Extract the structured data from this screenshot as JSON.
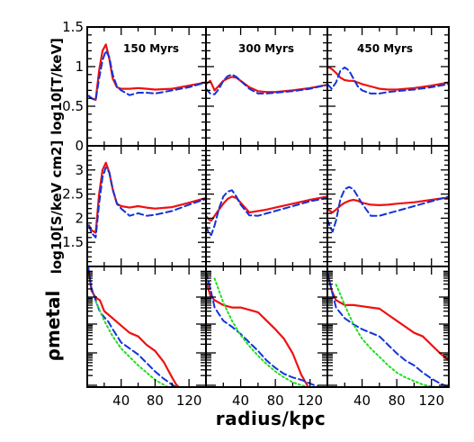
{
  "chart_data": {
    "type": "line",
    "layout": "3 rows x 3 columns, shared axes",
    "xlabel": "radius/kpc",
    "xlim": [
      0,
      140
    ],
    "xticks": [
      40,
      80,
      120
    ],
    "columns": [
      "150 Myrs",
      "300 Myrs",
      "450 Myrs"
    ],
    "rows": [
      {
        "ylabel": "log10[T/keV]",
        "ylim": [
          0,
          1.5
        ],
        "yticks": [
          0,
          0.5,
          1,
          1.5
        ],
        "ytick_labels": [
          "0",
          "0.5",
          "1",
          "1.5"
        ]
      },
      {
        "ylabel": "log10[S/keV cm2]",
        "ylim": [
          1.0,
          3.5
        ],
        "yticks": [
          1.5,
          2,
          2.5,
          3
        ],
        "ytick_labels": [
          "1.5",
          "2",
          "2.5",
          "3"
        ]
      },
      {
        "ylabel": "ρmetal",
        "ylim": [
          0,
          1
        ],
        "yticks": [],
        "ytick_labels": []
      }
    ],
    "series_styles": [
      {
        "color": "#ee1111",
        "dash": "solid"
      },
      {
        "color": "#1133dd",
        "dash": "dashed"
      },
      {
        "color": "#22dd22",
        "dash": "dotted"
      }
    ],
    "panels": [
      [
        [
          {
            "x": [
              2,
              5,
              10,
              14,
              18,
              22,
              26,
              30,
              35,
              40,
              50,
              60,
              70,
              80,
              100,
              120,
              140
            ],
            "y": [
              0.63,
              0.6,
              0.58,
              0.95,
              1.2,
              1.28,
              1.1,
              0.85,
              0.74,
              0.72,
              0.72,
              0.73,
              0.72,
              0.71,
              0.72,
              0.76,
              0.8
            ]
          },
          {
            "x": [
              2,
              5,
              10,
              14,
              18,
              22,
              26,
              30,
              35,
              40,
              50,
              60,
              70,
              80,
              100,
              120,
              140
            ],
            "y": [
              0.63,
              0.6,
              0.58,
              0.85,
              1.08,
              1.2,
              1.12,
              0.9,
              0.75,
              0.7,
              0.64,
              0.67,
              0.67,
              0.66,
              0.7,
              0.74,
              0.8
            ]
          }
        ],
        [
          {
            "x": [
              2,
              5,
              10,
              14,
              18,
              22,
              26,
              30,
              35,
              40,
              50,
              60,
              70,
              80,
              100,
              120,
              140
            ],
            "y": [
              1.85,
              1.75,
              1.7,
              2.5,
              3.0,
              3.15,
              2.95,
              2.6,
              2.3,
              2.25,
              2.22,
              2.25,
              2.22,
              2.2,
              2.23,
              2.32,
              2.42
            ]
          },
          {
            "x": [
              2,
              5,
              10,
              14,
              18,
              22,
              26,
              30,
              35,
              40,
              50,
              60,
              70,
              80,
              100,
              120,
              140
            ],
            "y": [
              1.85,
              1.7,
              1.6,
              2.3,
              2.85,
              3.05,
              2.95,
              2.6,
              2.3,
              2.2,
              2.05,
              2.1,
              2.05,
              2.07,
              2.15,
              2.28,
              2.4
            ]
          }
        ],
        [
          {
            "x": [
              1,
              5,
              10,
              15,
              20,
              25,
              30,
              40,
              50,
              60,
              70,
              80,
              90,
              100,
              105,
              108
            ],
            "y": [
              1.0,
              0.8,
              0.74,
              0.72,
              0.63,
              0.6,
              0.57,
              0.51,
              0.45,
              0.42,
              0.35,
              0.3,
              0.21,
              0.08,
              0.02,
              0.0
            ]
          },
          {
            "x": [
              1,
              5,
              10,
              15,
              20,
              25,
              30,
              40,
              50,
              60,
              70,
              80,
              90,
              100,
              105
            ],
            "y": [
              1.0,
              0.82,
              0.72,
              0.62,
              0.58,
              0.54,
              0.48,
              0.37,
              0.32,
              0.27,
              0.2,
              0.13,
              0.07,
              0.02,
              0.0
            ]
          },
          {
            "x": [
              10,
              20,
              30,
              40,
              50,
              60,
              70,
              80,
              90,
              95
            ],
            "y": [
              0.71,
              0.55,
              0.42,
              0.32,
              0.25,
              0.18,
              0.12,
              0.06,
              0.02,
              0.0
            ]
          }
        ]
      ],
      [
        [
          {
            "x": [
              0,
              5,
              10,
              15,
              20,
              25,
              30,
              35,
              40,
              50,
              60,
              70,
              80,
              100,
              120,
              140
            ],
            "y": [
              0.78,
              0.82,
              0.7,
              0.76,
              0.82,
              0.85,
              0.87,
              0.86,
              0.82,
              0.74,
              0.69,
              0.68,
              0.68,
              0.7,
              0.73,
              0.77
            ]
          },
          {
            "x": [
              0,
              5,
              10,
              15,
              20,
              25,
              30,
              35,
              40,
              50,
              60,
              70,
              80,
              100,
              120,
              140
            ],
            "y": [
              0.72,
              0.66,
              0.65,
              0.72,
              0.82,
              0.88,
              0.9,
              0.87,
              0.82,
              0.72,
              0.66,
              0.66,
              0.67,
              0.69,
              0.72,
              0.77
            ]
          }
        ],
        [
          {
            "x": [
              0,
              3,
              6,
              10,
              15,
              20,
              25,
              30,
              35,
              40,
              50,
              60,
              70,
              80,
              100,
              120,
              140
            ],
            "y": [
              2.05,
              1.98,
              1.95,
              2.05,
              2.18,
              2.3,
              2.4,
              2.45,
              2.42,
              2.32,
              2.12,
              2.15,
              2.18,
              2.22,
              2.3,
              2.38,
              2.45
            ]
          },
          {
            "x": [
              0,
              3,
              6,
              10,
              15,
              20,
              25,
              30,
              35,
              40,
              50,
              60,
              70,
              80,
              100,
              120,
              140
            ],
            "y": [
              1.85,
              1.7,
              1.65,
              1.85,
              2.2,
              2.45,
              2.55,
              2.58,
              2.45,
              2.28,
              2.06,
              2.05,
              2.1,
              2.15,
              2.25,
              2.35,
              2.42
            ]
          }
        ],
        [
          {
            "x": [
              0,
              5,
              10,
              20,
              30,
              40,
              50,
              60,
              70,
              80,
              90,
              100,
              110,
              118
            ],
            "y": [
              0.88,
              0.76,
              0.72,
              0.68,
              0.66,
              0.66,
              0.64,
              0.62,
              0.55,
              0.48,
              0.4,
              0.28,
              0.1,
              0.0
            ]
          },
          {
            "x": [
              0,
              5,
              10,
              20,
              30,
              40,
              50,
              60,
              70,
              80,
              90,
              100,
              110,
              120,
              130
            ],
            "y": [
              0.95,
              0.82,
              0.66,
              0.55,
              0.5,
              0.44,
              0.37,
              0.3,
              0.22,
              0.16,
              0.11,
              0.08,
              0.06,
              0.03,
              0.0
            ]
          },
          {
            "x": [
              10,
              20,
              30,
              40,
              50,
              60,
              70,
              80,
              90,
              100,
              110,
              118
            ],
            "y": [
              0.9,
              0.7,
              0.55,
              0.43,
              0.34,
              0.26,
              0.19,
              0.13,
              0.08,
              0.04,
              0.015,
              0.0
            ]
          }
        ]
      ],
      [
        [
          {
            "x": [
              0,
              5,
              10,
              15,
              20,
              25,
              30,
              35,
              40,
              50,
              60,
              70,
              80,
              100,
              120,
              140
            ],
            "y": [
              1.0,
              0.97,
              0.92,
              0.86,
              0.83,
              0.82,
              0.82,
              0.8,
              0.78,
              0.75,
              0.72,
              0.71,
              0.71,
              0.73,
              0.76,
              0.8
            ]
          },
          {
            "x": [
              0,
              5,
              10,
              15,
              20,
              25,
              30,
              35,
              40,
              50,
              60,
              70,
              80,
              100,
              120,
              140
            ],
            "y": [
              0.78,
              0.72,
              0.8,
              0.95,
              0.99,
              0.95,
              0.85,
              0.75,
              0.7,
              0.66,
              0.66,
              0.68,
              0.69,
              0.71,
              0.74,
              0.78
            ]
          }
        ],
        [
          {
            "x": [
              0,
              3,
              6,
              10,
              15,
              20,
              25,
              30,
              35,
              40,
              50,
              60,
              70,
              80,
              100,
              120,
              140
            ],
            "y": [
              2.2,
              2.15,
              2.12,
              2.18,
              2.26,
              2.32,
              2.36,
              2.38,
              2.36,
              2.32,
              2.28,
              2.27,
              2.28,
              2.3,
              2.33,
              2.38,
              2.43
            ]
          },
          {
            "x": [
              0,
              3,
              6,
              10,
              15,
              20,
              25,
              30,
              35,
              40,
              50,
              60,
              70,
              80,
              100,
              120,
              140
            ],
            "y": [
              1.98,
              1.82,
              1.72,
              1.95,
              2.4,
              2.6,
              2.65,
              2.6,
              2.45,
              2.3,
              2.05,
              2.05,
              2.1,
              2.15,
              2.25,
              2.35,
              2.45
            ]
          }
        ],
        [
          {
            "x": [
              0,
              5,
              10,
              20,
              30,
              40,
              50,
              60,
              70,
              80,
              90,
              100,
              110,
              120,
              130,
              140
            ],
            "y": [
              0.95,
              0.8,
              0.72,
              0.68,
              0.68,
              0.67,
              0.66,
              0.65,
              0.6,
              0.55,
              0.5,
              0.45,
              0.42,
              0.35,
              0.28,
              0.22
            ]
          },
          {
            "x": [
              0,
              5,
              10,
              20,
              30,
              40,
              50,
              60,
              70,
              80,
              90,
              100,
              110,
              120,
              130,
              140
            ],
            "y": [
              0.95,
              0.8,
              0.66,
              0.57,
              0.52,
              0.48,
              0.45,
              0.42,
              0.35,
              0.28,
              0.22,
              0.18,
              0.12,
              0.07,
              0.03,
              0.0
            ]
          },
          {
            "x": [
              10,
              20,
              30,
              40,
              50,
              60,
              70,
              80,
              90,
              100,
              110,
              120,
              128
            ],
            "y": [
              0.85,
              0.68,
              0.52,
              0.4,
              0.32,
              0.25,
              0.18,
              0.12,
              0.08,
              0.05,
              0.02,
              0.005,
              0.0
            ]
          }
        ]
      ]
    ]
  }
}
